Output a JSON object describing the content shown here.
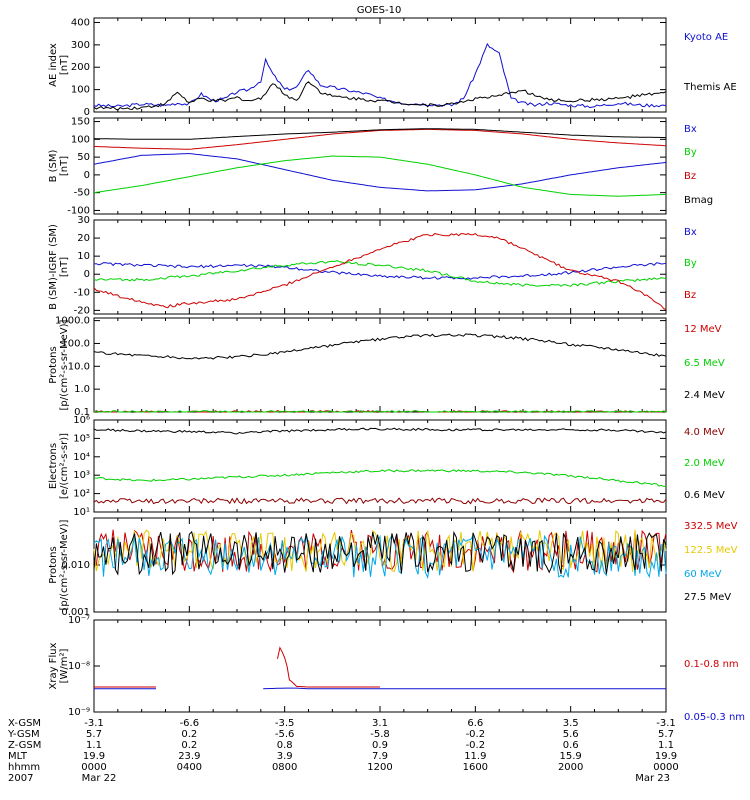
{
  "title": "GOES-10",
  "colors": {
    "black": "#000000",
    "red": "#cc0000",
    "green": "#00d000",
    "blue": "#1010d0",
    "darkred": "#8b0000",
    "cyan": "#00a8e8",
    "yellow": "#e8c800",
    "kyoto": "#1010d0"
  },
  "chart_data": [
    {
      "panel": "ae",
      "type": "line",
      "ylabel": [
        "AE index",
        "[nT]"
      ],
      "yticks": [
        "0",
        "100",
        "200",
        "300",
        "400"
      ],
      "ylim": [
        0,
        420
      ],
      "series": [
        {
          "name": "Kyoto AE",
          "color": "kyoto",
          "x": [
            0,
            1,
            2,
            3,
            3.5,
            4,
            4.5,
            5,
            5.5,
            6,
            6.5,
            7,
            7.2,
            7.5,
            8,
            8.5,
            9,
            9.5,
            10,
            10.5,
            11,
            11.5,
            12,
            13,
            14,
            15,
            15.5,
            16,
            16.5,
            17,
            17.5,
            18,
            18.5,
            19,
            20,
            21,
            22,
            23,
            24
          ],
          "y": [
            30,
            25,
            35,
            30,
            40,
            35,
            80,
            50,
            60,
            90,
            100,
            140,
            230,
            170,
            100,
            110,
            190,
            120,
            110,
            100,
            90,
            80,
            60,
            40,
            35,
            30,
            60,
            170,
            300,
            260,
            60,
            40,
            30,
            40,
            30,
            25,
            40,
            30,
            30
          ]
        },
        {
          "name": "Themis AE",
          "color": "black",
          "x": [
            0,
            1,
            2,
            3,
            3.5,
            4,
            4.5,
            5,
            5.5,
            6,
            6.5,
            7,
            7.5,
            8,
            8.5,
            9,
            9.5,
            10,
            11,
            12,
            13,
            14,
            15,
            16,
            17,
            17.5,
            18,
            18.5,
            19,
            20,
            21,
            22,
            23,
            24
          ],
          "y": [
            20,
            15,
            20,
            35,
            90,
            40,
            60,
            50,
            50,
            65,
            50,
            60,
            130,
            80,
            50,
            140,
            90,
            70,
            60,
            50,
            40,
            30,
            35,
            60,
            70,
            90,
            95,
            75,
            55,
            50,
            55,
            60,
            75,
            85
          ]
        }
      ]
    },
    {
      "panel": "b",
      "type": "line",
      "ylabel": [
        "B (SM)",
        "[nT]"
      ],
      "yticks": [
        "150",
        "100",
        "50",
        "0",
        "-50",
        "-100"
      ],
      "ylim": [
        -110,
        160
      ],
      "series": [
        {
          "name": "Bx",
          "color": "blue",
          "x": [
            0,
            2,
            4,
            6,
            8,
            10,
            12,
            14,
            16,
            18,
            20,
            22,
            24
          ],
          "y": [
            30,
            55,
            60,
            45,
            15,
            -15,
            -35,
            -45,
            -42,
            -25,
            0,
            20,
            35
          ]
        },
        {
          "name": "By",
          "color": "green",
          "x": [
            0,
            2,
            4,
            6,
            8,
            10,
            12,
            14,
            16,
            18,
            20,
            22,
            24
          ],
          "y": [
            -50,
            -30,
            -5,
            20,
            40,
            53,
            50,
            30,
            0,
            -35,
            -55,
            -60,
            -55
          ]
        },
        {
          "name": "Bz",
          "color": "red",
          "x": [
            0,
            2,
            4,
            6,
            8,
            10,
            12,
            14,
            16,
            18,
            20,
            22,
            24
          ],
          "y": [
            80,
            75,
            72,
            85,
            100,
            115,
            125,
            128,
            125,
            115,
            100,
            90,
            82
          ]
        },
        {
          "name": "Bmag",
          "color": "black",
          "x": [
            0,
            2,
            4,
            6,
            8,
            10,
            12,
            14,
            16,
            18,
            20,
            22,
            24
          ],
          "y": [
            102,
            100,
            100,
            108,
            115,
            120,
            127,
            130,
            128,
            120,
            112,
            107,
            105
          ]
        }
      ]
    },
    {
      "panel": "db",
      "type": "line",
      "ylabel": [
        "B (SM)-IGRF (SM)",
        "[nT]"
      ],
      "yticks": [
        "30",
        "20",
        "10",
        "0",
        "-10",
        "-20"
      ],
      "ylim": [
        -22,
        30
      ],
      "series": [
        {
          "name": "Bx",
          "color": "blue",
          "x": [
            0,
            2,
            4,
            6,
            8,
            10,
            12,
            14,
            16,
            18,
            20,
            22,
            24
          ],
          "y": [
            6,
            5,
            4,
            5,
            4,
            1,
            -1,
            -2,
            -2,
            -1,
            1,
            4,
            6
          ]
        },
        {
          "name": "By",
          "color": "green",
          "x": [
            0,
            2,
            4,
            6,
            8,
            10,
            12,
            14,
            16,
            18,
            20,
            22,
            24
          ],
          "y": [
            -3,
            -3,
            -1,
            2,
            5,
            7,
            5,
            2,
            -4,
            -6,
            -6,
            -4,
            -2
          ]
        },
        {
          "name": "Bz",
          "color": "red",
          "x": [
            0,
            1,
            2,
            3,
            4,
            6,
            8,
            10,
            12,
            14,
            16,
            17,
            18,
            19,
            20,
            22,
            23,
            24
          ],
          "y": [
            -8,
            -12,
            -15,
            -18,
            -16,
            -14,
            -6,
            4,
            14,
            22,
            22,
            20,
            14,
            8,
            2,
            -4,
            -10,
            -20
          ]
        }
      ]
    },
    {
      "panel": "protons_low",
      "type": "line",
      "ylog": true,
      "ylabel": [
        "Protons",
        "[p/(cm²-s-sr-MeV)]"
      ],
      "yticks": [
        "0.1",
        "1.0",
        "10.0",
        "100.0",
        "1000.0"
      ],
      "ylim": [
        0.1,
        1300
      ],
      "series": [
        {
          "name": "12 MeV",
          "color": "red",
          "x": [
            0,
            24
          ],
          "y": [
            0.1,
            0.1
          ]
        },
        {
          "name": "6.5 MeV",
          "color": "green",
          "x": [
            0,
            24
          ],
          "y": [
            0.1,
            0.1
          ]
        },
        {
          "name": "2.4 MeV",
          "color": "black",
          "x": [
            0,
            2,
            4,
            6,
            8,
            10,
            12,
            14,
            16,
            18,
            20,
            22,
            24
          ],
          "y": [
            40,
            30,
            22,
            25,
            40,
            80,
            150,
            230,
            230,
            160,
            90,
            55,
            25
          ]
        }
      ]
    },
    {
      "panel": "electrons",
      "type": "line",
      "ylog": true,
      "ylabel": [
        "Electrons",
        "[e/(cm²-s-sr)]"
      ],
      "yticks": [
        "10¹",
        "10²",
        "10³",
        "10⁴",
        "10⁵",
        "10⁶"
      ],
      "ylim": [
        10,
        1000000
      ],
      "series": [
        {
          "name": "4.0 MeV",
          "color": "darkred",
          "x": [
            0,
            24
          ],
          "y": [
            40,
            40
          ]
        },
        {
          "name": "2.0 MeV",
          "color": "green",
          "x": [
            0,
            2,
            4,
            6,
            8,
            10,
            12,
            14,
            16,
            18,
            20,
            22,
            24
          ],
          "y": [
            700,
            500,
            600,
            800,
            1000,
            1400,
            1700,
            1800,
            1700,
            1400,
            900,
            500,
            250
          ]
        },
        {
          "name": "0.6 MeV",
          "color": "black",
          "x": [
            0,
            2,
            4,
            6,
            8,
            10,
            12,
            14,
            16,
            18,
            20,
            22,
            24
          ],
          "y": [
            300000,
            250000,
            230000,
            200000,
            250000,
            300000,
            330000,
            300000,
            300000,
            290000,
            300000,
            280000,
            200000
          ]
        }
      ]
    },
    {
      "panel": "protons_high",
      "type": "line",
      "ylog": true,
      "ylabel": [
        "Protons",
        "[p/(cm²-s-sr-MeV)]"
      ],
      "yticks": [
        "0.001",
        "0.010"
      ],
      "ylim": [
        0.001,
        0.1
      ],
      "series": [
        {
          "name": "332.5 MeV",
          "color": "red",
          "x": [
            0,
            24
          ],
          "y": [
            0.02,
            0.02
          ]
        },
        {
          "name": "122.5 MeV",
          "color": "yellow",
          "x": [
            0,
            24
          ],
          "y": [
            0.02,
            0.02
          ]
        },
        {
          "name": "60 MeV",
          "color": "cyan",
          "x": [
            0,
            24
          ],
          "y": [
            0.015,
            0.015
          ]
        },
        {
          "name": "27.5 MeV",
          "color": "black",
          "x": [
            0,
            24
          ],
          "y": [
            0.018,
            0.018
          ]
        }
      ]
    },
    {
      "panel": "xray",
      "type": "line",
      "ylog": true,
      "ylabel": [
        "Xray Flux",
        "[W/m²]"
      ],
      "yticks": [
        "10⁻⁹",
        "10⁻⁸",
        "10⁻⁷"
      ],
      "ylim": [
        1e-09,
        1e-07
      ],
      "series": [
        {
          "name": "0.1-0.8 nm",
          "color": "red",
          "x": [
            0,
            2.6,
            3.4,
            7.6,
            7.8,
            8.0,
            8.2,
            8.5,
            9,
            12,
            12.1,
            24
          ],
          "y": [
            3.5e-09,
            3.5e-09,
            null,
            3.5e-09,
            2.5e-08,
            1.5e-08,
            5e-09,
            3.6e-09,
            3.5e-09,
            3.5e-09,
            null,
            3.5e-09
          ]
        },
        {
          "name": "0.05-0.3 nm",
          "color": "blue",
          "x": [
            0,
            2.6,
            3.4,
            7,
            8,
            8.5,
            9,
            10,
            11,
            12,
            13,
            24
          ],
          "y": [
            3.2e-09,
            3.2e-09,
            null,
            3.2e-09,
            3.3e-09,
            3.3e-09,
            3.2e-09,
            3.2e-09,
            3.2e-09,
            3.2e-09,
            3.2e-09,
            3.2e-09
          ]
        }
      ]
    }
  ],
  "orbit": {
    "row_labels": [
      "X-GSM",
      "Y-GSM",
      "Z-GSM",
      "MLT",
      "hhmm",
      "2007"
    ],
    "columns": [
      [
        "-3.1",
        "5.7",
        "1.1",
        "19.9",
        "0000",
        "Mar 22"
      ],
      [
        "-6.6",
        "0.2",
        "0.2",
        "23.9",
        "0400",
        ""
      ],
      [
        "-3.5",
        "-5.6",
        "0.8",
        "3.9",
        "0800",
        ""
      ],
      [
        "3.1",
        "-5.8",
        "0.9",
        "7.9",
        "1200",
        ""
      ],
      [
        "6.6",
        "-0.2",
        "-0.2",
        "11.9",
        "1600",
        ""
      ],
      [
        "3.5",
        "5.6",
        "0.6",
        "15.9",
        "2000",
        ""
      ],
      [
        "-3.1",
        "5.7",
        "1.1",
        "19.9",
        "0000",
        "Mar 23"
      ]
    ]
  }
}
